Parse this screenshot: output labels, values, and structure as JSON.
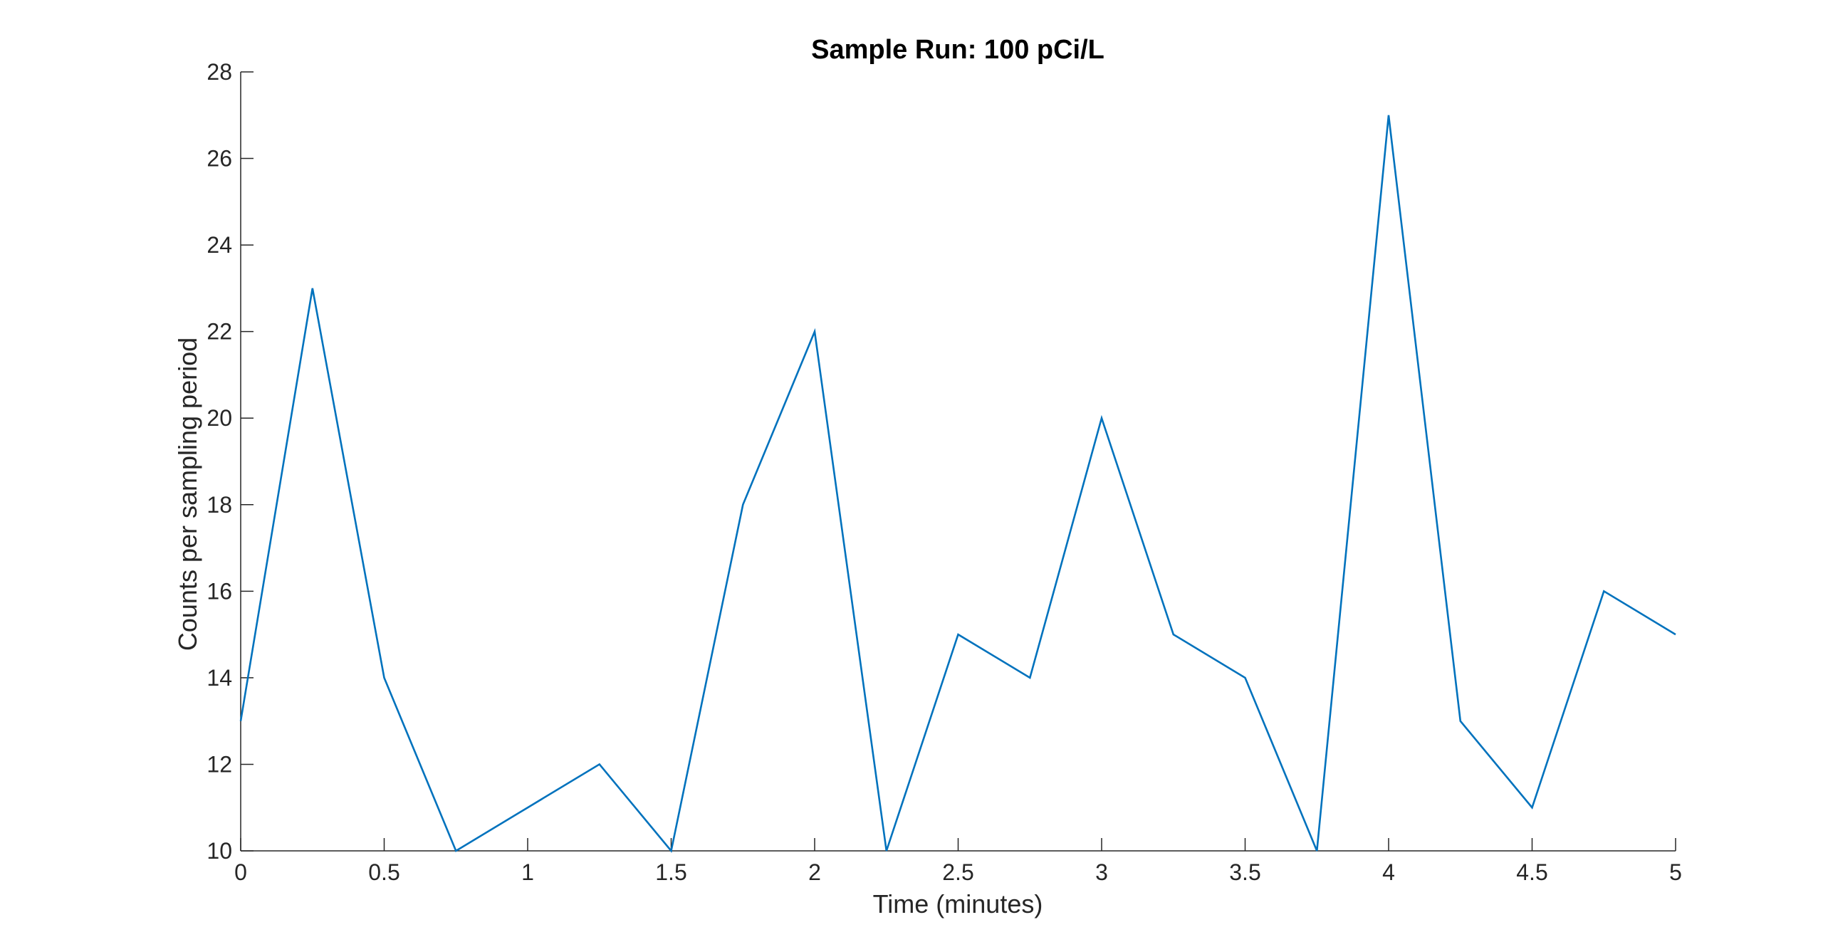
{
  "chart_data": {
    "type": "line",
    "title": "Sample Run: 100 pCi/L",
    "xlabel": "Time (minutes)",
    "ylabel": "Counts per sampling period",
    "xlim": [
      0,
      5
    ],
    "ylim": [
      10,
      28
    ],
    "xticks": [
      0,
      0.5,
      1,
      1.5,
      2,
      2.5,
      3,
      3.5,
      4,
      4.5,
      5
    ],
    "xtick_labels": [
      "0",
      "0.5",
      "1",
      "1.5",
      "2",
      "2.5",
      "3",
      "3.5",
      "4",
      "4.5",
      "5"
    ],
    "yticks": [
      10,
      12,
      14,
      16,
      18,
      20,
      22,
      24,
      26,
      28
    ],
    "ytick_labels": [
      "10",
      "12",
      "14",
      "16",
      "18",
      "20",
      "22",
      "24",
      "26",
      "28"
    ],
    "grid": false,
    "series": [
      {
        "color": "#0072BD",
        "x": [
          0,
          0.25,
          0.5,
          0.75,
          1,
          1.25,
          1.5,
          1.75,
          2,
          2.25,
          2.5,
          2.75,
          3,
          3.25,
          3.5,
          3.75,
          4,
          4.25,
          4.5,
          4.75,
          5
        ],
        "y": [
          13,
          23,
          14,
          10,
          11,
          12,
          10,
          18,
          22,
          10,
          15,
          14,
          20,
          15,
          14,
          10,
          27,
          13,
          11,
          16,
          15
        ]
      }
    ]
  }
}
